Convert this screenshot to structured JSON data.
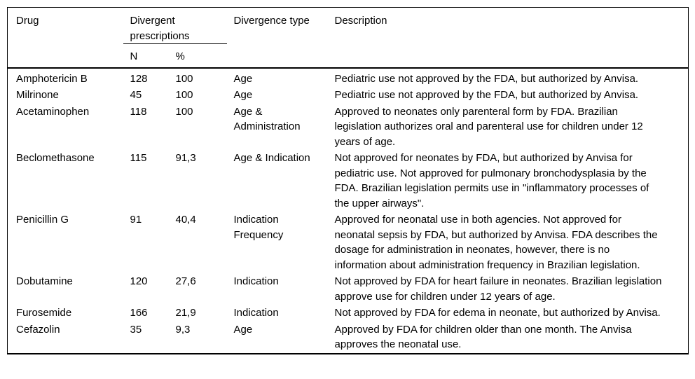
{
  "table": {
    "header": {
      "drug": "Drug",
      "divergent_group": "Divergent prescriptions",
      "n": "N",
      "pct": "%",
      "divergence_type": "Divergence type",
      "description": "Description"
    },
    "rows": [
      {
        "drug": "Amphotericin B",
        "n": "128",
        "pct": "100",
        "type": "Age",
        "description": "Pediatric use not approved by the FDA, but authorized by Anvisa."
      },
      {
        "drug": "Milrinone",
        "n": "45",
        "pct": "100",
        "type": "Age",
        "description": "Pediatric use not approved by the FDA, but authorized by Anvisa."
      },
      {
        "drug": "Acetaminophen",
        "n": "118",
        "pct": "100",
        "type": "Age & Administration",
        "description": "Approved to neonates only parenteral form by FDA. Brazilian legislation authorizes oral and parenteral use for children under 12 years of age."
      },
      {
        "drug": "Beclomethasone",
        "n": "115",
        "pct": "91,3",
        "type": "Age & Indication",
        "description": "Not approved for neonates by FDA, but authorized by Anvisa for pediatric use. Not approved for pulmonary bronchodysplasia by the FDA. Brazilian legislation permits use in \"inflammatory processes of the upper airways\"."
      },
      {
        "drug": "Penicillin G",
        "n": "91",
        "pct": "40,4",
        "type": "Indication Frequency",
        "description": "Approved for neonatal use in both agencies. Not approved for neonatal sepsis by FDA, but authorized by Anvisa. FDA describes the dosage for administration in neonates, however, there is no information about administration frequency in Brazilian legislation."
      },
      {
        "drug": "Dobutamine",
        "n": "120",
        "pct": "27,6",
        "type": "Indication",
        "description": "Not approved by FDA for heart failure in neonates. Brazilian legislation approve use for children under 12 years of age."
      },
      {
        "drug": "Furosemide",
        "n": "166",
        "pct": "21,9",
        "type": "Indication",
        "description": "Not approved by FDA for edema in neonate, but authorized by Anvisa."
      },
      {
        "drug": "Cefazolin",
        "n": "35",
        "pct": "9,3",
        "type": "Age",
        "description": "Approved by FDA for children older than one month. The Anvisa approves the neonatal use."
      }
    ],
    "colors": {
      "text": "#000000",
      "border": "#000000",
      "background": "#ffffff"
    }
  }
}
